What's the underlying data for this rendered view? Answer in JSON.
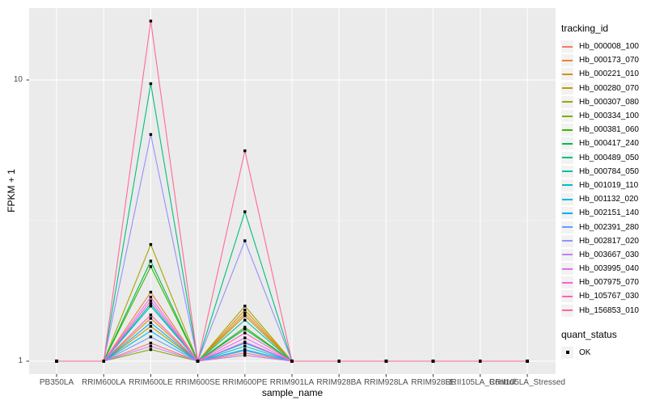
{
  "chart_data": {
    "type": "line",
    "title": "",
    "xlabel": "sample_name",
    "ylabel": "FPKM + 1",
    "y_scale": "log10",
    "ylim": [
      0.9,
      18
    ],
    "y_tick_values": [
      1,
      10
    ],
    "y_tick_labels": [
      "1",
      "10"
    ],
    "minor_gridline_values": [
      3.1623
    ],
    "panel_bg": "#EBEBEB",
    "gridline_color": "#FFFFFF",
    "tick_label_color": "#4D4D4D",
    "point_color": "#000000",
    "point_shape": "square",
    "legend_position": "right",
    "legend": {
      "color_title": "tracking_id",
      "shape_title": "quant_status",
      "shape_items": [
        "OK"
      ]
    },
    "categories": [
      "PB350LA",
      "RRIM600LA",
      "RRIM600LE",
      "RRIM600SE",
      "RRIM600PE",
      "RRIM901LA",
      "RRIM928BA",
      "RRIM928LA",
      "RRIM928LE",
      "RRII105LA_Control",
      "RRII105LA_Stressed"
    ],
    "series": [
      {
        "name": "Hb_000008_100",
        "color": "#F8766D",
        "values": [
          1,
          1,
          1.16,
          1,
          1.07,
          1,
          1,
          1,
          1,
          1,
          1
        ]
      },
      {
        "name": "Hb_000173_070",
        "color": "#EA8331",
        "values": [
          1,
          1,
          1.76,
          1,
          1.48,
          1,
          1,
          1,
          1,
          1,
          1
        ]
      },
      {
        "name": "Hb_000221_010",
        "color": "#D89000",
        "values": [
          1,
          1,
          1.42,
          1,
          1.52,
          1,
          1,
          1,
          1,
          1,
          1
        ]
      },
      {
        "name": "Hb_000280_070",
        "color": "#C09B00",
        "values": [
          1,
          1,
          1.33,
          1,
          1.45,
          1,
          1,
          1,
          1,
          1,
          1
        ]
      },
      {
        "name": "Hb_000307_080",
        "color": "#A3A500",
        "values": [
          1,
          1,
          2.6,
          1,
          1.57,
          1,
          1,
          1,
          1,
          1,
          1
        ]
      },
      {
        "name": "Hb_000334_100",
        "color": "#7CAE00",
        "values": [
          1,
          1,
          1.1,
          1,
          1.05,
          1,
          1,
          1,
          1,
          1,
          1
        ]
      },
      {
        "name": "Hb_000381_060",
        "color": "#39B600",
        "values": [
          1,
          1,
          2.17,
          1,
          1.32,
          1,
          1,
          1,
          1,
          1,
          1
        ]
      },
      {
        "name": "Hb_000417_240",
        "color": "#00BB4E",
        "values": [
          1,
          1,
          2.27,
          1,
          1.3,
          1,
          1,
          1,
          1,
          1,
          1
        ]
      },
      {
        "name": "Hb_000489_050",
        "color": "#00BF7D",
        "values": [
          1,
          1,
          9.7,
          1,
          3.4,
          1,
          1,
          1,
          1,
          1,
          1
        ]
      },
      {
        "name": "Hb_000784_050",
        "color": "#00C1A7",
        "values": [
          1,
          1,
          1.6,
          1,
          1.4,
          1,
          1,
          1,
          1,
          1,
          1
        ]
      },
      {
        "name": "Hb_001019_110",
        "color": "#00BFC4",
        "values": [
          1,
          1,
          1.57,
          1,
          1.13,
          1,
          1,
          1,
          1,
          1,
          1
        ]
      },
      {
        "name": "Hb_001132_020",
        "color": "#00B8E7",
        "values": [
          1,
          1,
          1.28,
          1,
          1.1,
          1,
          1,
          1,
          1,
          1,
          1
        ]
      },
      {
        "name": "Hb_002151_140",
        "color": "#00ACFC",
        "values": [
          1,
          1,
          1.37,
          1,
          1.16,
          1,
          1,
          1,
          1,
          1,
          1
        ]
      },
      {
        "name": "Hb_002391_280",
        "color": "#619CFF",
        "values": [
          1,
          1,
          1.22,
          1,
          1.09,
          1,
          1,
          1,
          1,
          1,
          1
        ]
      },
      {
        "name": "Hb_002817_020",
        "color": "#9590FF",
        "values": [
          1,
          1,
          6.4,
          1,
          2.68,
          1,
          1,
          1,
          1,
          1,
          1
        ]
      },
      {
        "name": "Hb_003667_030",
        "color": "#C77CFF",
        "values": [
          1,
          1,
          1.13,
          1,
          1.05,
          1,
          1,
          1,
          1,
          1,
          1
        ]
      },
      {
        "name": "Hb_003995_040",
        "color": "#E76BF3",
        "values": [
          1,
          1,
          1.69,
          1,
          1.21,
          1,
          1,
          1,
          1,
          1,
          1
        ]
      },
      {
        "name": "Hb_007975_070",
        "color": "#FD61D1",
        "values": [
          1,
          1,
          1.64,
          1,
          1.17,
          1,
          1,
          1,
          1,
          1,
          1
        ]
      },
      {
        "name": "Hb_105767_030",
        "color": "#FF62BC",
        "values": [
          1,
          1,
          1.46,
          1,
          1.26,
          1,
          1,
          1,
          1,
          1,
          1
        ]
      },
      {
        "name": "Hb_156853_010",
        "color": "#FF6A98",
        "values": [
          1,
          1,
          16.2,
          1,
          5.6,
          1,
          1,
          1,
          1,
          1,
          1
        ]
      }
    ]
  }
}
